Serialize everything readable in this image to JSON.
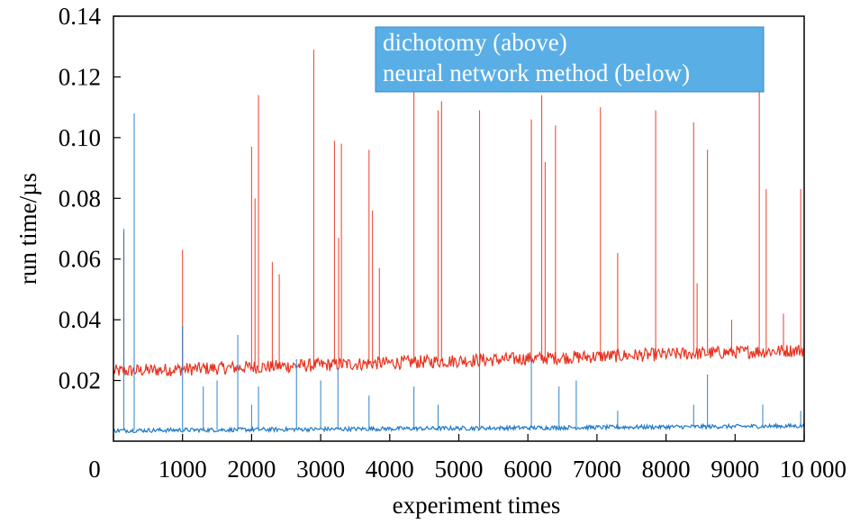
{
  "chart_data": {
    "type": "line",
    "xlabel": "experiment times",
    "ylabel": "run time/µs",
    "xlim": [
      0,
      10000
    ],
    "ylim": [
      0,
      0.14
    ],
    "x_ticks": [
      0,
      1000,
      2000,
      3000,
      4000,
      5000,
      6000,
      7000,
      8000,
      9000,
      10000
    ],
    "x_tick_labels": [
      "0",
      "1000",
      "2000",
      "3000",
      "4000",
      "5000",
      "6000",
      "7000",
      "8000",
      "9000",
      "10 000"
    ],
    "y_ticks": [
      0.02,
      0.04,
      0.06,
      0.08,
      0.1,
      0.12,
      0.14
    ],
    "y_tick_labels": [
      "0.02",
      "0.04",
      "0.06",
      "0.08",
      "0.10",
      "0.12",
      "0.14"
    ],
    "legend": {
      "placement": "top-right",
      "background": "#5aaee6",
      "entries": [
        "dichotomy (above)",
        "neural network method (below)"
      ]
    },
    "series": [
      {
        "name": "dichotomy (above)",
        "color": "#e8321e",
        "baseline_start": 0.023,
        "baseline_end": 0.03,
        "spikes": [
          [
            150,
            0.069
          ],
          [
            1000,
            0.063
          ],
          [
            2000,
            0.097
          ],
          [
            2050,
            0.08
          ],
          [
            2100,
            0.114
          ],
          [
            2300,
            0.059
          ],
          [
            2400,
            0.055
          ],
          [
            2900,
            0.129
          ],
          [
            3200,
            0.099
          ],
          [
            3260,
            0.067
          ],
          [
            3300,
            0.098
          ],
          [
            3700,
            0.096
          ],
          [
            3750,
            0.076
          ],
          [
            3850,
            0.057
          ],
          [
            4350,
            0.117
          ],
          [
            4700,
            0.109
          ],
          [
            4750,
            0.112
          ],
          [
            5300,
            0.109
          ],
          [
            6050,
            0.106
          ],
          [
            6200,
            0.114
          ],
          [
            6250,
            0.092
          ],
          [
            6400,
            0.104
          ],
          [
            7050,
            0.11
          ],
          [
            7300,
            0.062
          ],
          [
            7850,
            0.109
          ],
          [
            8400,
            0.105
          ],
          [
            8450,
            0.052
          ],
          [
            8600,
            0.096
          ],
          [
            8950,
            0.04
          ],
          [
            9350,
            0.116
          ],
          [
            9450,
            0.083
          ],
          [
            9700,
            0.042
          ],
          [
            9950,
            0.083
          ]
        ]
      },
      {
        "name": "neural network method (below)",
        "color": "#1f78c8",
        "baseline_start": 0.0035,
        "baseline_end": 0.005,
        "spikes": [
          [
            150,
            0.07
          ],
          [
            300,
            0.108
          ],
          [
            1000,
            0.038
          ],
          [
            1300,
            0.018
          ],
          [
            1500,
            0.02
          ],
          [
            1800,
            0.035
          ],
          [
            2000,
            0.012
          ],
          [
            2100,
            0.018
          ],
          [
            2650,
            0.027
          ],
          [
            3000,
            0.02
          ],
          [
            3250,
            0.024
          ],
          [
            3700,
            0.015
          ],
          [
            4350,
            0.018
          ],
          [
            4700,
            0.012
          ],
          [
            5300,
            0.028
          ],
          [
            6050,
            0.028
          ],
          [
            6450,
            0.018
          ],
          [
            6700,
            0.02
          ],
          [
            7300,
            0.01
          ],
          [
            8400,
            0.012
          ],
          [
            8600,
            0.022
          ],
          [
            9400,
            0.012
          ],
          [
            9950,
            0.01
          ]
        ]
      }
    ]
  }
}
